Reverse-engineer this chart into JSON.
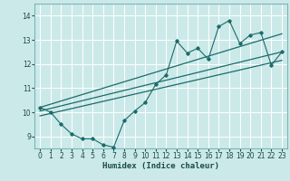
{
  "xlabel": "Humidex (Indice chaleur)",
  "xlim": [
    -0.5,
    23.5
  ],
  "ylim": [
    8.5,
    14.5
  ],
  "yticks": [
    9,
    10,
    11,
    12,
    13,
    14
  ],
  "xticks": [
    0,
    1,
    2,
    3,
    4,
    5,
    6,
    7,
    8,
    9,
    10,
    11,
    12,
    13,
    14,
    15,
    16,
    17,
    18,
    19,
    20,
    21,
    22,
    23
  ],
  "background_color": "#cce9e9",
  "grid_color": "#ffffff",
  "line_color": "#1a6b6b",
  "series1_y": [
    10.2,
    10.0,
    9.5,
    9.1,
    8.9,
    8.9,
    8.65,
    8.55,
    9.65,
    10.05,
    10.4,
    11.15,
    11.55,
    12.95,
    12.45,
    12.65,
    12.2,
    13.55,
    13.8,
    12.85,
    13.2,
    13.3,
    11.95,
    12.5
  ],
  "trend_upper_start": 10.2,
  "trend_upper_end": 13.25,
  "trend_middle_start": 10.05,
  "trend_middle_end": 12.5,
  "trend_lower_start": 9.85,
  "trend_lower_end": 12.15
}
